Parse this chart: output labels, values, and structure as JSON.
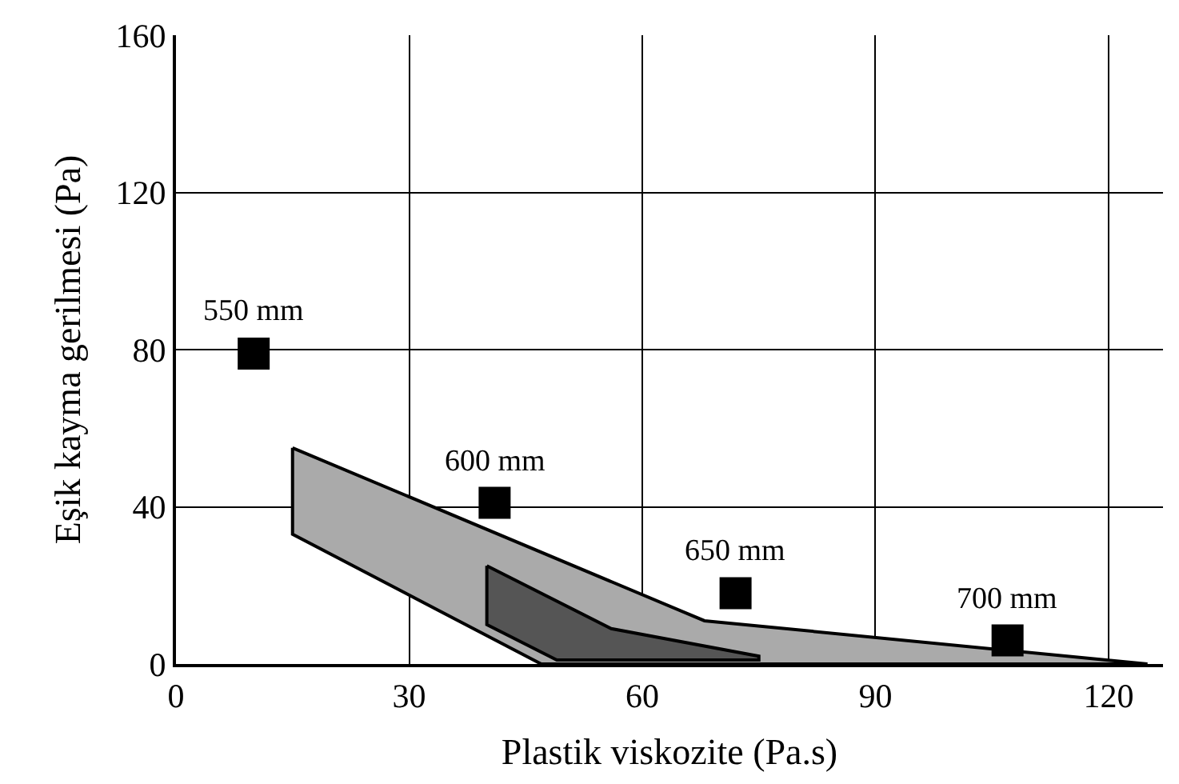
{
  "chart_data": {
    "type": "scatter",
    "xlabel": "Plastik viskozite (Pa.s)",
    "ylabel": "Eşik kayma gerilmesi (Pa)",
    "xlim": [
      0,
      127
    ],
    "ylim": [
      0,
      160
    ],
    "xticks": [
      0,
      30,
      60,
      90,
      120
    ],
    "yticks": [
      0,
      40,
      80,
      120,
      160
    ],
    "grid": true,
    "series": [
      {
        "type": "area",
        "color": "#aaaaaa",
        "x": [
          15,
          68,
          125,
          47,
          15,
          15
        ],
        "values": [
          55,
          11,
          0,
          0,
          33,
          55
        ]
      },
      {
        "type": "area",
        "color": "#555555",
        "x": [
          40,
          56,
          75,
          75,
          49,
          40,
          40
        ],
        "values": [
          25,
          9,
          2,
          1,
          1,
          10,
          25
        ]
      },
      {
        "color": "#000000",
        "marker": "square",
        "x": [
          10,
          41,
          72,
          107
        ],
        "values": [
          79,
          41,
          18,
          6
        ]
      }
    ],
    "annotations": [
      {
        "text": "550 mm",
        "x": 10,
        "y": 79
      },
      {
        "text": "600 mm",
        "x": 41,
        "y": 41
      },
      {
        "text": "650 mm",
        "x": 72,
        "y": 18
      },
      {
        "text": "700 mm",
        "x": 107,
        "y": 6
      }
    ]
  }
}
